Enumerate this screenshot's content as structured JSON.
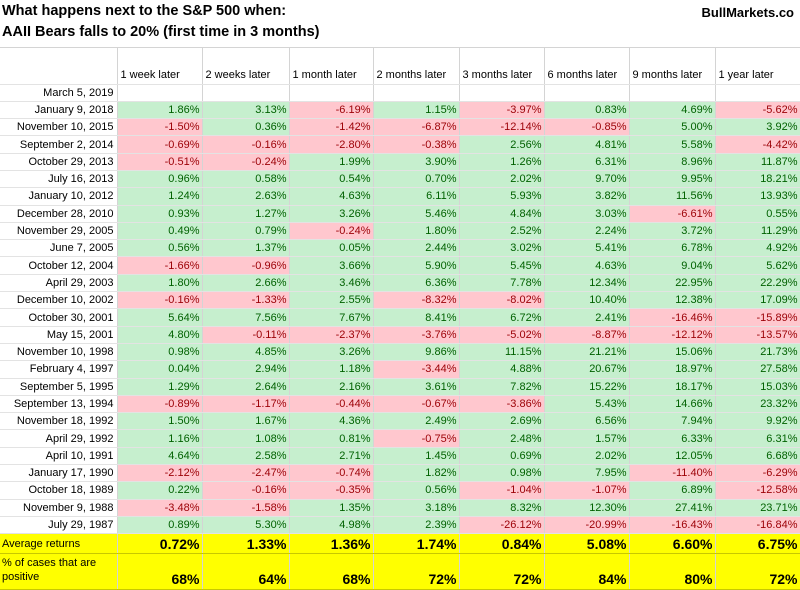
{
  "title": {
    "line1": "What happens next to the S&P 500 when:",
    "line2": "AAII Bears falls to 20% (first time in 3 months)",
    "brand": "BullMarkets.co"
  },
  "columns": [
    "1 week later",
    "2 weeks later",
    "1 month later",
    "2 months later",
    "3 months later",
    "6 months later",
    "9 months later",
    "1 year later"
  ],
  "current_date": "March 5, 2019",
  "rows": [
    {
      "date": "January 9, 2018",
      "values": [
        "1.86%",
        "3.13%",
        "-6.19%",
        "1.15%",
        "-3.97%",
        "0.83%",
        "4.69%",
        "-5.62%"
      ]
    },
    {
      "date": "November 10, 2015",
      "values": [
        "-1.50%",
        "0.36%",
        "-1.42%",
        "-6.87%",
        "-12.14%",
        "-0.85%",
        "5.00%",
        "3.92%"
      ]
    },
    {
      "date": "September 2, 2014",
      "values": [
        "-0.69%",
        "-0.16%",
        "-2.80%",
        "-0.38%",
        "2.56%",
        "4.81%",
        "5.58%",
        "-4.42%"
      ]
    },
    {
      "date": "October 29, 2013",
      "values": [
        "-0.51%",
        "-0.24%",
        "1.99%",
        "3.90%",
        "1.26%",
        "6.31%",
        "8.96%",
        "11.87%"
      ]
    },
    {
      "date": "July 16, 2013",
      "values": [
        "0.96%",
        "0.58%",
        "0.54%",
        "0.70%",
        "2.02%",
        "9.70%",
        "9.95%",
        "18.21%"
      ]
    },
    {
      "date": "January 10, 2012",
      "values": [
        "1.24%",
        "2.63%",
        "4.63%",
        "6.11%",
        "5.93%",
        "3.82%",
        "11.56%",
        "13.93%"
      ]
    },
    {
      "date": "December 28, 2010",
      "values": [
        "0.93%",
        "1.27%",
        "3.26%",
        "5.46%",
        "4.84%",
        "3.03%",
        "-6.61%",
        "0.55%"
      ]
    },
    {
      "date": "November 29, 2005",
      "values": [
        "0.49%",
        "0.79%",
        "-0.24%",
        "1.80%",
        "2.52%",
        "2.24%",
        "3.72%",
        "11.29%"
      ]
    },
    {
      "date": "June 7, 2005",
      "values": [
        "0.56%",
        "1.37%",
        "0.05%",
        "2.44%",
        "3.02%",
        "5.41%",
        "6.78%",
        "4.92%"
      ]
    },
    {
      "date": "October 12, 2004",
      "values": [
        "-1.66%",
        "-0.96%",
        "3.66%",
        "5.90%",
        "5.45%",
        "4.63%",
        "9.04%",
        "5.62%"
      ]
    },
    {
      "date": "April 29, 2003",
      "values": [
        "1.80%",
        "2.66%",
        "3.46%",
        "6.36%",
        "7.78%",
        "12.34%",
        "22.95%",
        "22.29%"
      ]
    },
    {
      "date": "December 10, 2002",
      "values": [
        "-0.16%",
        "-1.33%",
        "2.55%",
        "-8.32%",
        "-8.02%",
        "10.40%",
        "12.38%",
        "17.09%"
      ]
    },
    {
      "date": "October 30, 2001",
      "values": [
        "5.64%",
        "7.56%",
        "7.67%",
        "8.41%",
        "6.72%",
        "2.41%",
        "-16.46%",
        "-15.89%"
      ]
    },
    {
      "date": "May 15, 2001",
      "values": [
        "4.80%",
        "-0.11%",
        "-2.37%",
        "-3.76%",
        "-5.02%",
        "-8.87%",
        "-12.12%",
        "-13.57%"
      ]
    },
    {
      "date": "November 10, 1998",
      "values": [
        "0.98%",
        "4.85%",
        "3.26%",
        "9.86%",
        "11.15%",
        "21.21%",
        "15.06%",
        "21.73%"
      ]
    },
    {
      "date": "February 4, 1997",
      "values": [
        "0.04%",
        "2.94%",
        "1.18%",
        "-3.44%",
        "4.88%",
        "20.67%",
        "18.97%",
        "27.58%"
      ]
    },
    {
      "date": "September 5, 1995",
      "values": [
        "1.29%",
        "2.64%",
        "2.16%",
        "3.61%",
        "7.82%",
        "15.22%",
        "18.17%",
        "15.03%"
      ]
    },
    {
      "date": "September 13, 1994",
      "values": [
        "-0.89%",
        "-1.17%",
        "-0.44%",
        "-0.67%",
        "-3.86%",
        "5.43%",
        "14.66%",
        "23.32%"
      ]
    },
    {
      "date": "November 18, 1992",
      "values": [
        "1.50%",
        "1.67%",
        "4.36%",
        "2.49%",
        "2.69%",
        "6.56%",
        "7.94%",
        "9.92%"
      ]
    },
    {
      "date": "April 29, 1992",
      "values": [
        "1.16%",
        "1.08%",
        "0.81%",
        "-0.75%",
        "2.48%",
        "1.57%",
        "6.33%",
        "6.31%"
      ]
    },
    {
      "date": "April 10, 1991",
      "values": [
        "4.64%",
        "2.58%",
        "2.71%",
        "1.45%",
        "0.69%",
        "2.02%",
        "12.05%",
        "6.68%"
      ]
    },
    {
      "date": "January 17, 1990",
      "values": [
        "-2.12%",
        "-2.47%",
        "-0.74%",
        "1.82%",
        "0.98%",
        "7.95%",
        "-11.40%",
        "-6.29%"
      ]
    },
    {
      "date": "October 18, 1989",
      "values": [
        "0.22%",
        "-0.16%",
        "-0.35%",
        "0.56%",
        "-1.04%",
        "-1.07%",
        "6.89%",
        "-12.58%"
      ]
    },
    {
      "date": "November 9, 1988",
      "values": [
        "-3.48%",
        "-1.58%",
        "1.35%",
        "3.18%",
        "8.32%",
        "12.30%",
        "27.41%",
        "23.71%"
      ]
    },
    {
      "date": "July 29, 1987",
      "values": [
        "0.89%",
        "5.30%",
        "4.98%",
        "2.39%",
        "-26.12%",
        "-20.99%",
        "-16.43%",
        "-16.84%"
      ]
    }
  ],
  "summary": {
    "average_label": "Average returns",
    "average_values": [
      "0.72%",
      "1.33%",
      "1.36%",
      "1.74%",
      "0.84%",
      "5.08%",
      "6.60%",
      "6.75%"
    ],
    "positive_label": "% of cases that are positive",
    "positive_values": [
      "68%",
      "64%",
      "68%",
      "72%",
      "72%",
      "84%",
      "80%",
      "72%"
    ]
  },
  "colors": {
    "positive_fill": "#c6efce",
    "positive_text": "#006100",
    "negative_fill": "#ffc7ce",
    "negative_text": "#9c0006",
    "summary_fill": "#ffff00"
  }
}
